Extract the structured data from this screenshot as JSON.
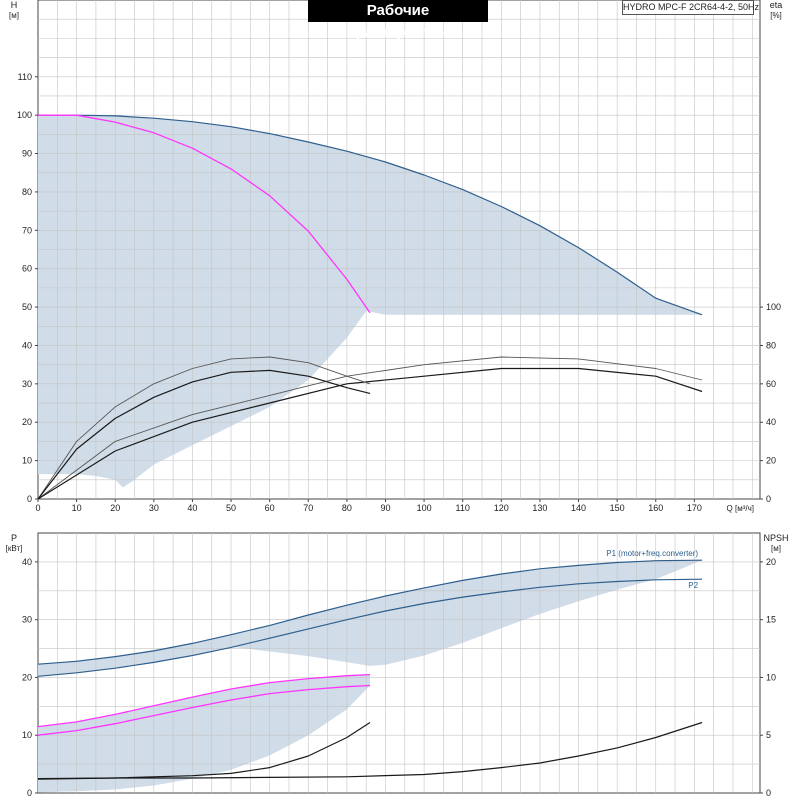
{
  "title": "Рабочие характеристики",
  "model": "HYDRO MPC-F 2CR64-4-2, 50Hz",
  "colors": {
    "grid": "#c4c4c4",
    "area": "#d0dce8",
    "pump": "#2f5f8e",
    "magenta": "#ff33ff",
    "black": "#1a1a1a",
    "gray": "#555555"
  },
  "chart_data": [
    {
      "type": "line",
      "name": "head_efficiency",
      "xlabel": "Q [м³/ч]",
      "x_axis_label": "Q [м³/ч]",
      "ylabel_left": "H",
      "ylabel_left_unit": "[м]",
      "ylabel_right": "eta",
      "ylabel_right_unit": "[%]",
      "xlim": [
        0,
        187
      ],
      "xticks": [
        0,
        10,
        20,
        30,
        40,
        50,
        60,
        70,
        80,
        90,
        100,
        110,
        120,
        130,
        140,
        150,
        160,
        170
      ],
      "ylim_left": [
        0,
        130
      ],
      "yticks_left": [
        0,
        10,
        20,
        30,
        40,
        50,
        60,
        70,
        80,
        90,
        100,
        110
      ],
      "ylim_right": [
        0,
        260
      ],
      "yticks_right": [
        0,
        20,
        40,
        60,
        80,
        100
      ],
      "grid": true,
      "series": [
        {
          "id": "h2",
          "style": "pump",
          "x": [
            0,
            10,
            20,
            30,
            40,
            50,
            60,
            70,
            80,
            90,
            100,
            110,
            120,
            130,
            140,
            150,
            160,
            172
          ],
          "y": [
            100,
            100,
            99.8,
            99.2,
            98.3,
            97,
            95.2,
            93,
            90.6,
            87.8,
            84.4,
            80.6,
            76.2,
            71.2,
            65.5,
            59.1,
            52.3,
            48
          ]
        },
        {
          "id": "h1",
          "style": "magenta",
          "x": [
            0,
            10,
            20,
            30,
            40,
            50,
            60,
            70,
            80,
            86
          ],
          "y": [
            100,
            100,
            98.2,
            95.4,
            91.4,
            86,
            79,
            69.8,
            57.2,
            48.5
          ]
        },
        {
          "id": "eta2_sys",
          "style": "gray",
          "axis": "right",
          "x": [
            0,
            20,
            40,
            60,
            80,
            100,
            120,
            140,
            160,
            172
          ],
          "y": [
            0,
            30,
            44,
            54,
            64,
            70,
            74,
            73,
            68,
            62
          ]
        },
        {
          "id": "eta2_pump",
          "style": "black",
          "axis": "right",
          "x": [
            0,
            20,
            40,
            60,
            80,
            100,
            120,
            140,
            160,
            172
          ],
          "y": [
            0,
            25,
            40,
            50,
            60,
            64,
            68,
            68,
            64,
            56
          ]
        },
        {
          "id": "eta1_sys",
          "style": "gray",
          "axis": "right",
          "x": [
            0,
            10,
            20,
            30,
            40,
            50,
            60,
            70,
            80,
            86
          ],
          "y": [
            0,
            30,
            48,
            60,
            68,
            73,
            74,
            71,
            64,
            60
          ]
        },
        {
          "id": "eta1_pump",
          "style": "black",
          "axis": "right",
          "x": [
            0,
            10,
            20,
            30,
            40,
            50,
            60,
            70,
            80,
            86
          ],
          "y": [
            0,
            26,
            42,
            53,
            61,
            66,
            67,
            64,
            58,
            55
          ]
        }
      ],
      "area": {
        "upper": {
          "x": [
            0,
            10,
            20,
            30,
            40,
            50,
            60,
            70,
            80,
            85,
            90,
            100,
            110,
            120,
            130,
            140,
            150,
            160,
            172
          ],
          "y": [
            100,
            100,
            99.8,
            99.2,
            98.3,
            97,
            95.2,
            93,
            90.6,
            89.1,
            87.8,
            84.4,
            80.6,
            76.2,
            71.2,
            65.5,
            59.1,
            52.3,
            48
          ]
        },
        "lower": {
          "x": [
            172,
            100,
            90,
            85,
            80,
            70,
            60,
            50,
            40,
            30,
            25,
            22,
            20,
            15,
            10,
            5,
            0
          ],
          "y": [
            48,
            48,
            48,
            49,
            42,
            31,
            24,
            19,
            14,
            9,
            5,
            3,
            5,
            6,
            6.5,
            6.5,
            6.5
          ]
        }
      }
    },
    {
      "type": "line",
      "name": "power_npsh",
      "ylabel_left": "P",
      "ylabel_left_unit": "[кВт]",
      "ylabel_right": "NPSH",
      "ylabel_right_unit": "[м]",
      "xlim": [
        0,
        187
      ],
      "ylim_left": [
        0,
        45
      ],
      "yticks_left": [
        0,
        10,
        20,
        30,
        40
      ],
      "ylim_right": [
        0,
        22.5
      ],
      "yticks_right": [
        0,
        5,
        10,
        15,
        20
      ],
      "grid": true,
      "series": [
        {
          "id": "P1",
          "name": "P1 (motor+freq.converter)",
          "style": "pump",
          "x": [
            0,
            10,
            20,
            30,
            40,
            50,
            60,
            70,
            80,
            90,
            100,
            110,
            120,
            130,
            140,
            150,
            160,
            172
          ],
          "y": [
            22.3,
            22.8,
            23.6,
            24.6,
            25.9,
            27.4,
            29,
            30.8,
            32.5,
            34.1,
            35.5,
            36.8,
            37.9,
            38.8,
            39.4,
            39.9,
            40.2,
            40.3
          ]
        },
        {
          "id": "P2",
          "name": "P2",
          "style": "pump",
          "x": [
            0,
            10,
            20,
            30,
            40,
            50,
            60,
            70,
            80,
            90,
            100,
            110,
            120,
            130,
            140,
            150,
            160,
            172
          ],
          "y": [
            20.2,
            20.8,
            21.6,
            22.6,
            23.8,
            25.2,
            26.8,
            28.4,
            30,
            31.5,
            32.8,
            33.9,
            34.8,
            35.6,
            36.2,
            36.6,
            36.9,
            37
          ]
        },
        {
          "id": "P1_1",
          "style": "magenta",
          "x": [
            0,
            10,
            20,
            30,
            40,
            50,
            60,
            70,
            80,
            86
          ],
          "y": [
            11.5,
            12.3,
            13.6,
            15.1,
            16.6,
            18,
            19.1,
            19.8,
            20.3,
            20.5
          ]
        },
        {
          "id": "P2_1",
          "style": "magenta",
          "x": [
            0,
            10,
            20,
            30,
            40,
            50,
            60,
            70,
            80,
            86
          ],
          "y": [
            10,
            10.8,
            12,
            13.4,
            14.8,
            16.1,
            17.2,
            17.9,
            18.4,
            18.6
          ]
        },
        {
          "id": "npsh2",
          "style": "black",
          "axis": "right",
          "x": [
            0,
            20,
            40,
            60,
            80,
            100,
            110,
            120,
            130,
            140,
            150,
            160,
            172
          ],
          "y": [
            1.25,
            1.3,
            1.3,
            1.35,
            1.4,
            1.6,
            1.85,
            2.2,
            2.6,
            3.2,
            3.9,
            4.8,
            6.1
          ]
        },
        {
          "id": "npsh1",
          "style": "black",
          "axis": "right",
          "x": [
            0,
            20,
            40,
            50,
            60,
            70,
            80,
            86
          ],
          "y": [
            1.2,
            1.3,
            1.5,
            1.7,
            2.2,
            3.2,
            4.8,
            6.1
          ]
        }
      ],
      "areas": [
        {
          "upper": {
            "x": [
              0,
              20,
              40,
              60,
              80,
              100,
              120,
              140,
              160,
              172
            ],
            "y": [
              22.3,
              23.6,
              25.9,
              29,
              32.5,
              35.5,
              37.9,
              39.4,
              40.2,
              40.3
            ]
          },
          "lower": {
            "x": [
              172,
              160,
              150,
              140,
              130,
              120,
              110,
              100,
              90,
              86,
              70,
              50,
              30,
              10,
              0
            ],
            "y": [
              40.3,
              37,
              35.2,
              33.2,
              31,
              28.5,
              26,
              23.8,
              22.2,
              22,
              23.7,
              25.3,
              22.6,
              20.8,
              20.2
            ]
          }
        },
        {
          "upper": {
            "x": [
              0,
              10,
              20,
              30,
              40,
              50,
              60,
              70,
              80,
              86
            ],
            "y": [
              11.5,
              12.3,
              13.6,
              15.1,
              16.6,
              18,
              19.1,
              19.8,
              20.3,
              20.5
            ]
          },
          "lower": {
            "x": [
              86,
              80,
              70,
              60,
              50,
              40,
              30,
              20,
              10,
              5,
              0
            ],
            "y": [
              18.6,
              14.5,
              10,
              6.5,
              4,
              2.5,
              1.3,
              0.6,
              0.3,
              0.2,
              0.1
            ]
          }
        }
      ]
    }
  ]
}
